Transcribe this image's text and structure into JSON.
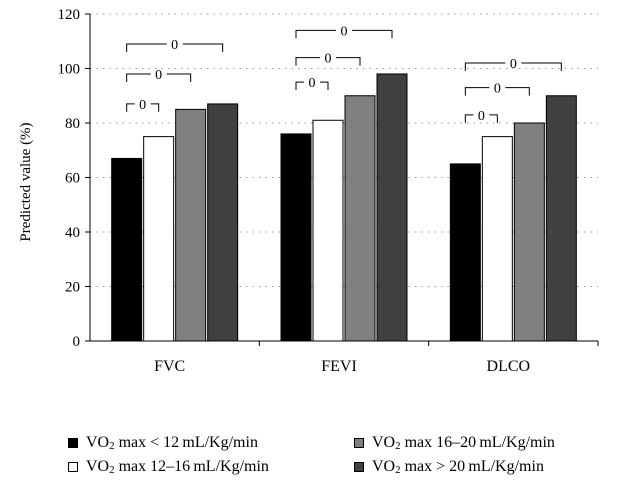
{
  "chart_data": {
    "type": "bar",
    "ylabel": "Predicted value (%)",
    "xlabel": "",
    "ylim": [
      0,
      120
    ],
    "yticks": [
      0,
      20,
      40,
      60,
      80,
      100,
      120
    ],
    "grid": "dotted horizontal",
    "categories": [
      "FVC",
      "FEVI",
      "DLCO"
    ],
    "series": [
      {
        "name": "VO2 max < 12 mL/Kg/min",
        "color": "#000000",
        "values": [
          67,
          76,
          65
        ]
      },
      {
        "name": "VO2 max 12–16 mL/Kg/min",
        "color": "#ffffff",
        "values": [
          75,
          81,
          75
        ]
      },
      {
        "name": "VO2 max 16–20 mL/Kg/min",
        "color": "#808080",
        "values": [
          85,
          90,
          80
        ]
      },
      {
        "name": "VO2 max > 20 mL/Kg/min",
        "color": "#404040",
        "values": [
          87,
          98,
          90
        ]
      }
    ],
    "significance": [
      {
        "category": 0,
        "from": 0,
        "to": 1,
        "level": 87,
        "label": "0"
      },
      {
        "category": 0,
        "from": 0,
        "to": 2,
        "level": 98,
        "label": "0"
      },
      {
        "category": 0,
        "from": 0,
        "to": 3,
        "level": 109,
        "label": "0"
      },
      {
        "category": 1,
        "from": 0,
        "to": 1,
        "level": 95,
        "label": "0"
      },
      {
        "category": 1,
        "from": 0,
        "to": 2,
        "level": 104,
        "label": "0"
      },
      {
        "category": 1,
        "from": 0,
        "to": 3,
        "level": 114,
        "label": "0"
      },
      {
        "category": 2,
        "from": 0,
        "to": 1,
        "level": 83,
        "label": "0"
      },
      {
        "category": 2,
        "from": 0,
        "to": 2,
        "level": 93,
        "label": "0"
      },
      {
        "category": 2,
        "from": 0,
        "to": 3,
        "level": 102,
        "label": "0"
      }
    ],
    "legend_position": "bottom",
    "legend": [
      {
        "prefix": "VO",
        "sub": "2",
        "rest": " max < 12 mL/Kg/min"
      },
      {
        "prefix": "VO",
        "sub": "2",
        "rest": " max 12–16 mL/Kg/min"
      },
      {
        "prefix": "VO",
        "sub": "2",
        "rest": " max 16–20 mL/Kg/min"
      },
      {
        "prefix": "VO",
        "sub": "2",
        "rest": " max > 20 mL/Kg/min"
      }
    ]
  }
}
